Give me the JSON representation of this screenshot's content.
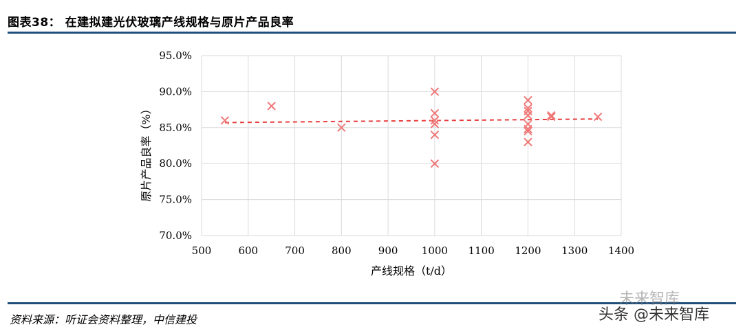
{
  "header": {
    "title": "图表38：   在建拟建光伏玻璃产线规格与原片产品良率"
  },
  "footer": {
    "source": "资料来源：听证会资料整理，中信建投"
  },
  "watermark": {
    "text1": "未来智库",
    "text2": "头条 @未来智库"
  },
  "colors": {
    "marker": "#f07878",
    "trend": "#e83c3c",
    "grid": "#d9d9d9",
    "rule": "#1f4e79"
  },
  "chart_data": {
    "type": "scatter",
    "title": "",
    "xlabel": "产线规格（t/d）",
    "ylabel": "原片产品良率（%）",
    "xlim": [
      500,
      1400
    ],
    "ylim": [
      0.7,
      0.95
    ],
    "xticks": [
      "500",
      "600",
      "700",
      "800",
      "900",
      "1000",
      "1100",
      "1200",
      "1300",
      "1400"
    ],
    "yticks": [
      "95.0%",
      "90.0%",
      "85.0%",
      "80.0%",
      "75.0%",
      "70.0%"
    ],
    "grid": true,
    "marker": "x",
    "points": [
      {
        "x": 550,
        "y": 0.86
      },
      {
        "x": 650,
        "y": 0.88
      },
      {
        "x": 800,
        "y": 0.85
      },
      {
        "x": 1000,
        "y": 0.9
      },
      {
        "x": 1000,
        "y": 0.87
      },
      {
        "x": 1000,
        "y": 0.86
      },
      {
        "x": 1000,
        "y": 0.855
      },
      {
        "x": 1000,
        "y": 0.84
      },
      {
        "x": 1000,
        "y": 0.8
      },
      {
        "x": 1200,
        "y": 0.888
      },
      {
        "x": 1200,
        "y": 0.877
      },
      {
        "x": 1200,
        "y": 0.873
      },
      {
        "x": 1200,
        "y": 0.867
      },
      {
        "x": 1200,
        "y": 0.855
      },
      {
        "x": 1200,
        "y": 0.848
      },
      {
        "x": 1200,
        "y": 0.845
      },
      {
        "x": 1200,
        "y": 0.83
      },
      {
        "x": 1250,
        "y": 0.867
      },
      {
        "x": 1250,
        "y": 0.865
      },
      {
        "x": 1350,
        "y": 0.865
      }
    ],
    "trendline": {
      "type": "linear",
      "style": "dashed",
      "x": [
        550,
        1350
      ],
      "y": [
        0.857,
        0.862
      ]
    }
  }
}
